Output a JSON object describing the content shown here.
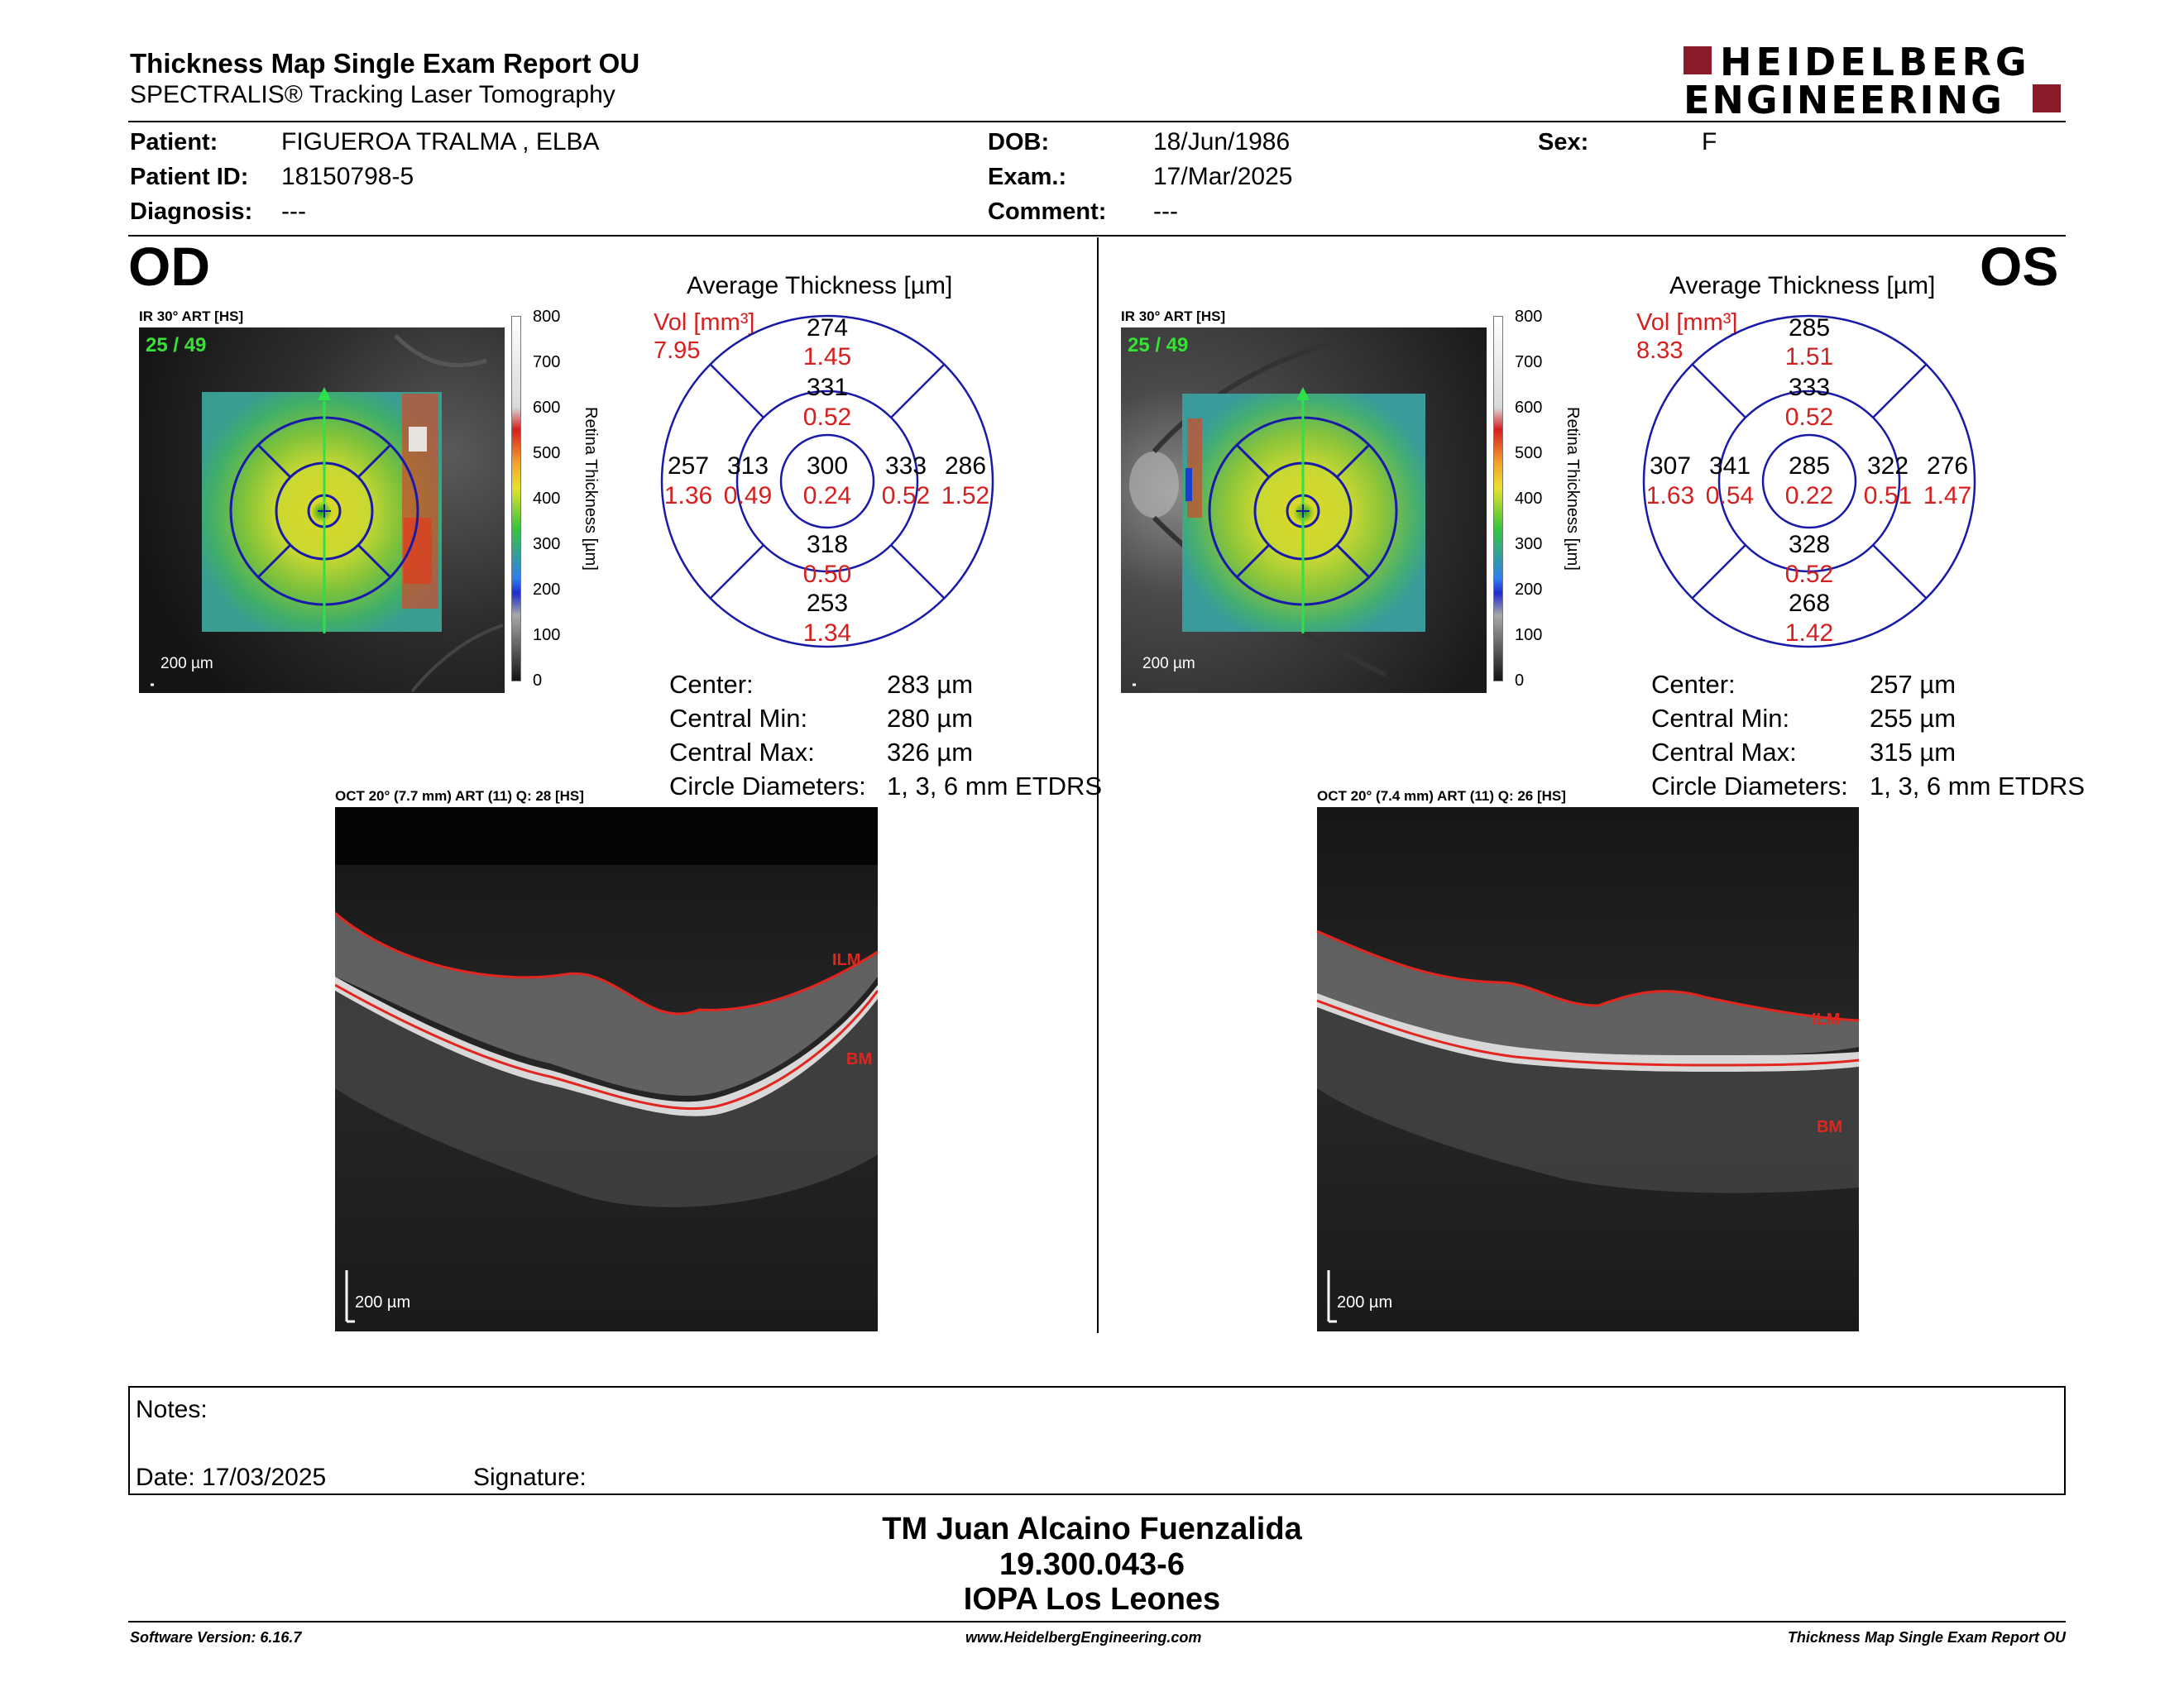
{
  "header": {
    "title": "Thickness Map Single Exam Report OU",
    "subtitle": "SPECTRALIS® Tracking Laser Tomography",
    "logo_line1": "HEIDELBERG",
    "logo_line2": "ENGINEERING",
    "brand_color": "#8b1a2b"
  },
  "patient": {
    "patient_label": "Patient:",
    "patient_name": "FIGUEROA TRALMA , ELBA",
    "id_label": "Patient ID:",
    "id_value": "18150798-5",
    "diagnosis_label": "Diagnosis:",
    "diagnosis_value": "---",
    "dob_label": "DOB:",
    "dob_value": "18/Jun/1986",
    "exam_label": "Exam.:",
    "exam_value": "17/Mar/2025",
    "comment_label": "Comment:",
    "comment_value": "---",
    "sex_label": "Sex:",
    "sex_value": "F"
  },
  "scale": {
    "ticks": [
      "800",
      "700",
      "600",
      "500",
      "400",
      "300",
      "200",
      "100",
      "0"
    ],
    "axis_label": "Retina Thickness [µm]"
  },
  "od": {
    "eye": "OD",
    "ir_label": "IR 30° ART [HS]",
    "frame": "25 / 49",
    "ir_scale": "200 µm",
    "avg_title": "Average Thickness [µm]",
    "vol_label": "Vol [mm³]",
    "vol_value": "7.95",
    "sectors": {
      "outer_superior": {
        "t": "274",
        "v": "1.45"
      },
      "inner_superior": {
        "t": "331",
        "v": "0.52"
      },
      "outer_temporal": {
        "t": "257",
        "v": "1.36"
      },
      "inner_temporal": {
        "t": "313",
        "v": "0.49"
      },
      "center": {
        "t": "300",
        "v": "0.24"
      },
      "inner_nasal": {
        "t": "333",
        "v": "0.52"
      },
      "outer_nasal": {
        "t": "286",
        "v": "1.52"
      },
      "inner_inferior": {
        "t": "318",
        "v": "0.50"
      },
      "outer_inferior": {
        "t": "253",
        "v": "1.34"
      }
    },
    "stats": [
      {
        "label": "Center:",
        "value": "283 µm"
      },
      {
        "label": "Central Min:",
        "value": "280 µm"
      },
      {
        "label": "Central Max:",
        "value": "326 µm"
      },
      {
        "label": "Circle Diameters:",
        "value": "1, 3, 6 mm ETDRS"
      }
    ],
    "oct_label": "OCT 20° (7.7 mm) ART (11) Q: 28 [HS]",
    "oct_scale": "200 µm",
    "ilm": "ILM",
    "bm": "BM"
  },
  "os": {
    "eye": "OS",
    "ir_label": "IR 30° ART [HS]",
    "frame": "25 / 49",
    "ir_scale": "200 µm",
    "avg_title": "Average Thickness [µm]",
    "vol_label": "Vol [mm³]",
    "vol_value": "8.33",
    "sectors": {
      "outer_superior": {
        "t": "285",
        "v": "1.51"
      },
      "inner_superior": {
        "t": "333",
        "v": "0.52"
      },
      "outer_temporal": {
        "t": "307",
        "v": "1.63"
      },
      "inner_temporal": {
        "t": "341",
        "v": "0.54"
      },
      "center": {
        "t": "285",
        "v": "0.22"
      },
      "inner_nasal": {
        "t": "322",
        "v": "0.51"
      },
      "outer_nasal": {
        "t": "276",
        "v": "1.47"
      },
      "inner_inferior": {
        "t": "328",
        "v": "0.52"
      },
      "outer_inferior": {
        "t": "268",
        "v": "1.42"
      }
    },
    "stats": [
      {
        "label": "Center:",
        "value": "257 µm"
      },
      {
        "label": "Central Min:",
        "value": "255 µm"
      },
      {
        "label": "Central Max:",
        "value": "315 µm"
      },
      {
        "label": "Circle Diameters:",
        "value": "1, 3, 6 mm ETDRS"
      }
    ],
    "oct_label": "OCT 20° (7.4 mm) ART (11) Q: 26 [HS]",
    "oct_scale": "200 µm",
    "ilm": "ILM",
    "bm": "BM"
  },
  "notes": {
    "notes_label": "Notes:",
    "date_label": "Date: 17/03/2025",
    "signature_label": "Signature:"
  },
  "stamp": {
    "line1": "TM Juan Alcaino Fuenzalida",
    "line2": "19.300.043-6",
    "line3": "IOPA Los Leones"
  },
  "footer": {
    "software": "Software Version: 6.16.7",
    "website": "www.HeidelbergEngineering.com",
    "report": "Thickness Map Single Exam Report OU"
  }
}
